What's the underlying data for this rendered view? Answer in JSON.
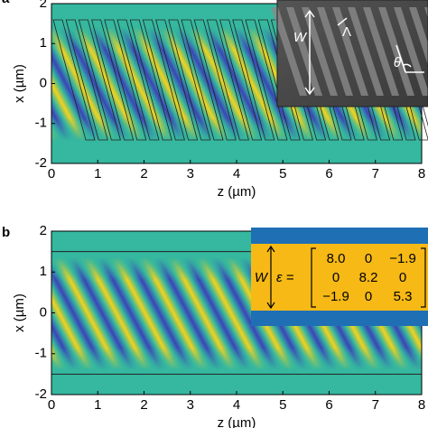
{
  "panels": [
    {
      "label": "a",
      "xlabel": "z (µm)",
      "ylabel": "x (µm)",
      "xlim": [
        0,
        8
      ],
      "ylim": [
        -2,
        2
      ],
      "xticks": [
        0,
        1,
        2,
        3,
        4,
        5,
        6,
        7,
        8
      ],
      "yticks": [
        -2,
        -1,
        0,
        1,
        2
      ],
      "inset": {
        "width_label": "W",
        "period_label": "Λ",
        "angle_label": "θ"
      }
    },
    {
      "label": "b",
      "xlabel": "z (µm)",
      "ylabel": "x (µm)",
      "xlim": [
        0,
        8
      ],
      "ylim": [
        -2,
        2
      ],
      "xticks": [
        0,
        1,
        2,
        3,
        4,
        5,
        6,
        7,
        8
      ],
      "yticks": [
        -2,
        -1,
        0,
        1,
        2
      ],
      "inset": {
        "width_label": "W",
        "epsilon": "ε =",
        "matrix": [
          [
            "8.0",
            "0",
            "−1.9"
          ],
          [
            "0",
            "8.2",
            "0"
          ],
          [
            "−1.9",
            "0",
            "5.3"
          ]
        ]
      }
    }
  ]
}
